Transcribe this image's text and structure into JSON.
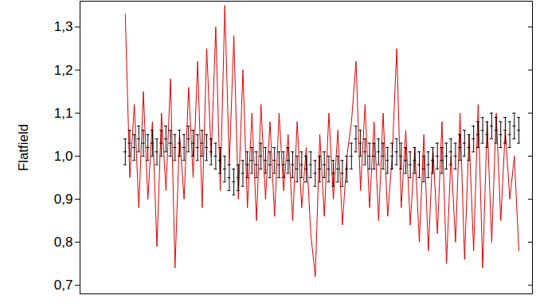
{
  "chart_data": {
    "type": "line",
    "y_label": "Flatfield",
    "x": [
      10,
      11,
      12,
      13,
      14,
      15,
      16,
      17,
      18,
      19,
      20,
      21,
      22,
      23,
      24,
      25,
      26,
      27,
      28,
      29,
      30,
      31,
      32,
      33,
      34,
      35,
      36,
      37,
      38,
      39,
      40,
      41,
      42,
      43,
      44,
      45,
      46,
      47,
      48,
      49,
      50,
      51,
      52,
      53,
      54,
      55,
      56,
      57,
      58,
      59,
      60,
      61,
      62,
      63,
      64,
      65,
      66,
      67,
      68,
      69,
      70,
      71,
      72,
      73,
      74,
      75,
      76,
      77,
      78,
      79,
      80,
      81,
      82,
      83,
      84,
      85,
      86,
      87,
      88,
      89,
      90,
      91,
      92,
      93,
      94,
      95,
      96,
      97
    ],
    "series": [
      {
        "type": "line",
        "color": "#e00000",
        "values": [
          1.33,
          0.95,
          1.12,
          0.88,
          1.15,
          0.9,
          1.08,
          0.79,
          1.1,
          0.92,
          1.18,
          0.74,
          1.05,
          0.9,
          1.16,
          0.95,
          1.22,
          0.88,
          1.25,
          1.0,
          1.3,
          0.92,
          1.35,
          0.98,
          1.28,
          0.9,
          1.2,
          0.88,
          1.1,
          0.85,
          1.12,
          0.9,
          1.08,
          0.86,
          1.1,
          0.92,
          1.05,
          0.85,
          1.08,
          0.88,
          1.02,
          0.82,
          0.72,
          1.05,
          0.86,
          1.1,
          0.9,
          1.06,
          0.84,
          1.0,
          1.08,
          1.22,
          0.92,
          1.12,
          0.88,
          1.08,
          0.85,
          1.1,
          0.86,
          1.0,
          1.25,
          0.88,
          1.06,
          0.84,
          1.02,
          0.8,
          1.05,
          0.78,
          1.02,
          0.82,
          1.08,
          0.75,
          1.0,
          0.8,
          1.1,
          0.76,
          1.05,
          0.78,
          1.12,
          0.74,
          1.08,
          0.8,
          1.1,
          0.85,
          1.06,
          0.9,
          1.0,
          0.78
        ]
      },
      {
        "type": "errorbar",
        "color": "#000000",
        "values": [
          1.01,
          1.03,
          1.02,
          1.04,
          1.03,
          1.02,
          1.03,
          1.01,
          1.03,
          1.04,
          1.03,
          1.02,
          1.03,
          1.02,
          1.04,
          1.03,
          1.02,
          1.03,
          1.02,
          1.01,
          1.0,
          0.99,
          0.97,
          0.95,
          0.94,
          0.95,
          0.96,
          0.98,
          0.99,
          0.98,
          1.0,
          0.99,
          0.98,
          0.99,
          0.98,
          0.98,
          0.99,
          0.98,
          0.97,
          0.98,
          0.97,
          0.98,
          0.96,
          0.97,
          0.98,
          0.97,
          0.96,
          0.97,
          0.96,
          0.97,
          1.0,
          1.04,
          1.03,
          1.01,
          1.0,
          1.0,
          1.01,
          1.0,
          0.99,
          1.0,
          1.01,
          1.0,
          0.99,
          0.98,
          0.99,
          0.98,
          0.97,
          0.98,
          0.99,
          1.0,
          0.99,
          1.0,
          1.01,
          1.0,
          1.02,
          1.03,
          1.02,
          1.04,
          1.05,
          1.06,
          1.05,
          1.07,
          1.06,
          1.05,
          1.06,
          1.05,
          1.07,
          1.06
        ],
        "errors": [
          0.03,
          0.03,
          0.03,
          0.03,
          0.03,
          0.03,
          0.03,
          0.03,
          0.03,
          0.03,
          0.03,
          0.03,
          0.03,
          0.03,
          0.03,
          0.03,
          0.03,
          0.03,
          0.03,
          0.03,
          0.03,
          0.03,
          0.03,
          0.03,
          0.03,
          0.03,
          0.03,
          0.03,
          0.03,
          0.03,
          0.03,
          0.03,
          0.03,
          0.03,
          0.03,
          0.03,
          0.03,
          0.03,
          0.03,
          0.03,
          0.03,
          0.03,
          0.03,
          0.03,
          0.03,
          0.03,
          0.03,
          0.03,
          0.03,
          0.03,
          0.03,
          0.03,
          0.03,
          0.03,
          0.03,
          0.03,
          0.03,
          0.03,
          0.03,
          0.03,
          0.03,
          0.03,
          0.03,
          0.03,
          0.03,
          0.03,
          0.03,
          0.03,
          0.03,
          0.03,
          0.03,
          0.03,
          0.03,
          0.03,
          0.03,
          0.03,
          0.03,
          0.03,
          0.03,
          0.03,
          0.03,
          0.03,
          0.03,
          0.03,
          0.03,
          0.03,
          0.03,
          0.03
        ]
      }
    ],
    "xlim": [
      0,
      100
    ],
    "ylim": [
      0.68,
      1.36
    ],
    "yticks": [
      {
        "value": 0.7,
        "label": "0,7"
      },
      {
        "value": 0.8,
        "label": "0,8"
      },
      {
        "value": 0.9,
        "label": "0,9"
      },
      {
        "value": 1.0,
        "label": "1,0"
      },
      {
        "value": 1.1,
        "label": "1,1"
      },
      {
        "value": 1.2,
        "label": "1,2"
      },
      {
        "value": 1.3,
        "label": "1,3"
      }
    ],
    "tick_labels": "y",
    "grid": false
  }
}
